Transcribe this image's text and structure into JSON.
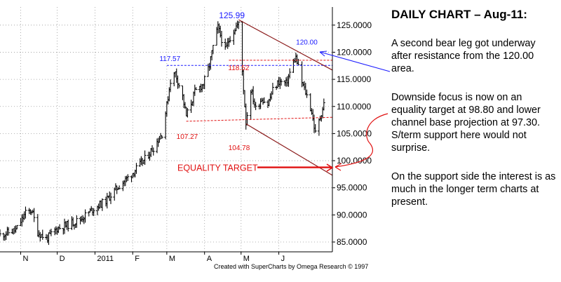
{
  "commentary": {
    "title": "DAILY CHART – Aug-11:",
    "paragraphs": [
      "A second bear leg got underway after resistance from the 120.00 area.",
      "Downside focus is now on an equality target at 98.80 and lower channel base projection at 97.30. S/term support here would not surprise.",
      "On the support side the interest is as much in the longer term charts at present."
    ]
  },
  "credit": "Created with SuperCharts by Omega Research © 1997",
  "colors": {
    "bars": "#000000",
    "channel": "#8b1a1a",
    "resistance_blue": "#1a1aff",
    "support_red": "#e01010",
    "grid": "#9a9a9a"
  },
  "chart_data": {
    "type": "ohlc-bar",
    "title": "",
    "xlabel": "",
    "ylabel": "",
    "ylim": [
      84,
      127
    ],
    "y_ticks": [
      "85.0000",
      "90.0000",
      "95.0000",
      "100.0000",
      "105.0000",
      "110.0000",
      "115.0000",
      "120.0000",
      "125.0000"
    ],
    "y_tick_values": [
      85,
      90,
      95,
      100,
      105,
      110,
      115,
      120,
      125
    ],
    "x_tick_labels": [
      "N",
      "D",
      "2011",
      "F",
      "M",
      "A",
      "M",
      "J"
    ],
    "x_tick_dates": [
      "2010-11-01",
      "2010-12-01",
      "2011-01-01",
      "2011-02-01",
      "2011-03-01",
      "2011-04-01",
      "2011-05-01",
      "2011-06-01"
    ],
    "x_range": [
      "2010-10-15",
      "2011-07-15"
    ],
    "grid": true,
    "key_levels": [
      {
        "label": "125.99",
        "date": "2011-04-29",
        "value": 125.99,
        "color": "resistance_blue"
      },
      {
        "label": "117.57",
        "date": "2011-03-03",
        "value": 117.57,
        "color": "resistance_blue"
      },
      {
        "label": "118.52",
        "date": "2011-04-21",
        "value": 118.52,
        "color": "support_red"
      },
      {
        "label": "107.27",
        "date": "2011-03-17",
        "value": 107.27,
        "color": "support_red"
      },
      {
        "label": "104.78",
        "date": "2011-05-05",
        "value": 104.78,
        "color": "support_red"
      },
      {
        "label": "120.00",
        "date": "2011-06-14",
        "value": 120.0,
        "color": "resistance_blue"
      }
    ],
    "resistance_line": {
      "value": 117.57,
      "from": "2011-03-01",
      "to": "2011-07-15"
    },
    "support_line": {
      "from_date": "2011-03-17",
      "from_value": 107.27,
      "to_date": "2011-07-15",
      "to_value": 108.0
    },
    "upper_red_line": {
      "from_date": "2011-04-21",
      "from_value": 118.52,
      "to_date": "2011-07-15",
      "to_value": 118.52
    },
    "channel_upper": {
      "from_date": "2011-04-29",
      "from_value": 125.99,
      "to_date": "2011-07-15",
      "to_value": 116.7
    },
    "channel_lower": {
      "from_date": "2011-05-05",
      "from_value": 106.8,
      "to_date": "2011-07-15",
      "to_value": 97.3
    },
    "equality_target": {
      "label": "EQUALITY TARGET",
      "value": 98.8,
      "from": "2011-05-05",
      "to": "2011-07-15"
    },
    "price_path": [
      [
        "2010-10-15",
        86.3
      ],
      [
        "2010-10-28",
        87.2
      ],
      [
        "2010-11-05",
        90.3
      ],
      [
        "2010-11-10",
        90.9
      ],
      [
        "2010-11-15",
        86.8
      ],
      [
        "2010-11-22",
        85.6
      ],
      [
        "2010-11-26",
        86.4
      ],
      [
        "2010-12-01",
        87.5
      ],
      [
        "2010-12-10",
        88.2
      ],
      [
        "2010-12-20",
        89.2
      ],
      [
        "2010-12-31",
        91.2
      ],
      [
        "2011-01-10",
        92.6
      ],
      [
        "2011-01-20",
        95.2
      ],
      [
        "2011-01-31",
        97.5
      ],
      [
        "2011-02-10",
        100.0
      ],
      [
        "2011-02-18",
        102.4
      ],
      [
        "2011-02-25",
        105.0
      ],
      [
        "2011-03-01",
        110.2
      ],
      [
        "2011-03-04",
        114.8
      ],
      [
        "2011-03-08",
        116.2
      ],
      [
        "2011-03-14",
        111.8
      ],
      [
        "2011-03-17",
        108.2
      ],
      [
        "2011-03-24",
        112.6
      ],
      [
        "2011-03-31",
        114.2
      ],
      [
        "2011-04-05",
        117.6
      ],
      [
        "2011-04-08",
        121.0
      ],
      [
        "2011-04-12",
        124.6
      ],
      [
        "2011-04-18",
        120.3
      ],
      [
        "2011-04-22",
        122.8
      ],
      [
        "2011-04-27",
        124.8
      ],
      [
        "2011-04-29",
        125.2
      ],
      [
        "2011-05-02",
        116.5
      ],
      [
        "2011-05-05",
        107.0
      ],
      [
        "2011-05-09",
        113.2
      ],
      [
        "2011-05-13",
        109.6
      ],
      [
        "2011-05-18",
        111.5
      ],
      [
        "2011-05-23",
        110.4
      ],
      [
        "2011-05-27",
        113.0
      ],
      [
        "2011-06-01",
        114.6
      ],
      [
        "2011-06-07",
        114.2
      ],
      [
        "2011-06-13",
        118.2
      ],
      [
        "2011-06-15",
        119.0
      ],
      [
        "2011-06-20",
        114.4
      ],
      [
        "2011-06-24",
        112.0
      ],
      [
        "2011-06-28",
        109.0
      ],
      [
        "2011-07-01",
        105.0
      ],
      [
        "2011-07-05",
        108.0
      ],
      [
        "2011-07-08",
        110.5
      ]
    ]
  }
}
